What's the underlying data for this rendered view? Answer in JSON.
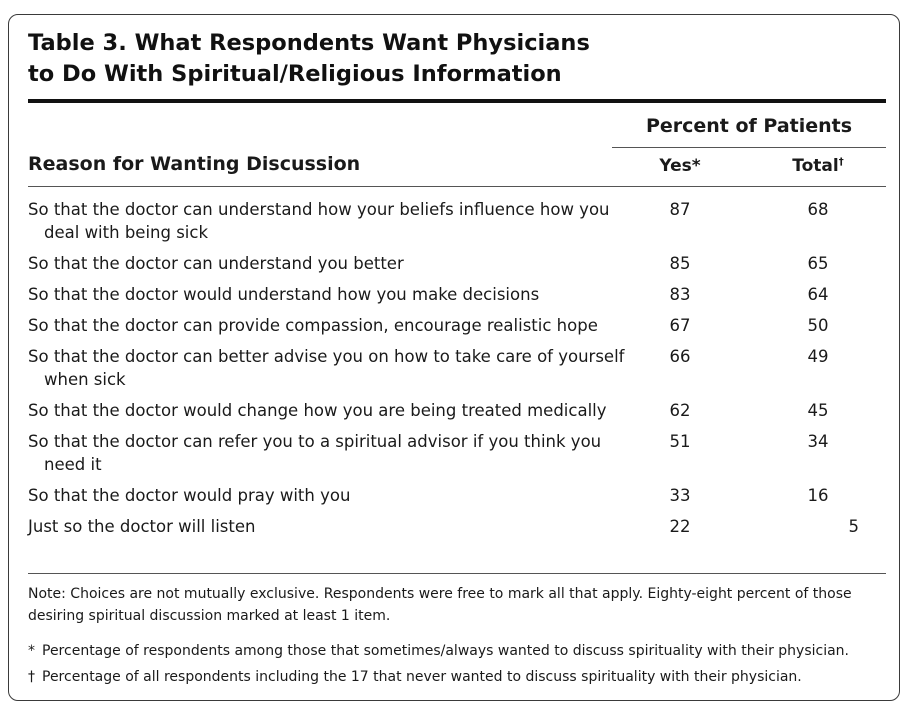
{
  "table": {
    "title_line1": "Table 3. What Respondents Want Physicians",
    "title_line2": "to Do With Spiritual/Religious Information",
    "group_header": "Percent of Patients",
    "col_reason": "Reason for Wanting Discussion",
    "col_yes": "Yes*",
    "col_total": "Total",
    "col_total_mark": "†",
    "rows": [
      {
        "reason": "So that the doctor can understand how your beliefs influence how you deal with being sick",
        "yes": "87",
        "total": "68"
      },
      {
        "reason": "So that the doctor can understand you better",
        "yes": "85",
        "total": "65"
      },
      {
        "reason": "So that the doctor would understand how you make decisions",
        "yes": "83",
        "total": "64"
      },
      {
        "reason": "So that the doctor can provide compassion, encourage realistic hope",
        "yes": "67",
        "total": "50"
      },
      {
        "reason": "So that the doctor can better advise you on how to take care of yourself when sick",
        "yes": "66",
        "total": "49"
      },
      {
        "reason": "So that the doctor would change how you are being treated medically",
        "yes": "62",
        "total": "45"
      },
      {
        "reason": "So that the doctor can refer you to a spiritual advisor if you think you need it",
        "yes": "51",
        "total": "34"
      },
      {
        "reason": "So that the doctor would pray with you",
        "yes": "33",
        "total": "16"
      },
      {
        "reason": "Just so the doctor will listen",
        "yes": "22",
        "total": "5"
      }
    ],
    "note": "Note: Choices are not mutually exclusive. Respondents were free to mark all that apply. Eighty-eight percent of those desiring spiritual discussion marked at least 1 item.",
    "footnote1_mark": "*",
    "footnote1": "Percentage of respondents among those that sometimes/always wanted to discuss spirituality with their physician.",
    "footnote2_mark": "†",
    "footnote2": "Percentage of all respondents including the 17 that never wanted to discuss spirituality with their physician."
  }
}
